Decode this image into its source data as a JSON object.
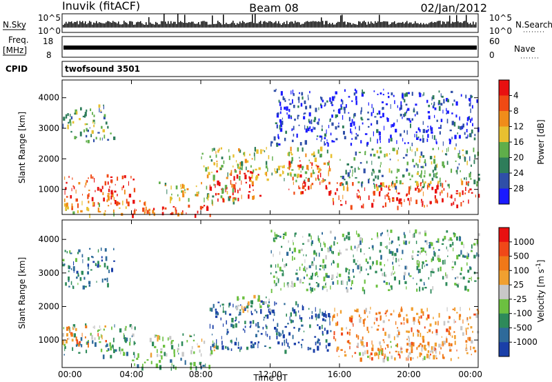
{
  "header": {
    "station": "Inuvik (fitACF)",
    "beam": "Beam 08",
    "date": "02/Jan/2012"
  },
  "status_panels": {
    "nsky_label": "N.Sky",
    "nsearch_label": "N.Search",
    "freq_label_line1": "Freq.",
    "freq_label_line2": "[MHz]",
    "nave_label": "Nave",
    "cpid_label": "CPID",
    "cpid_value": "twofsound 3501",
    "noise_ticks_left": [
      "10^5",
      "10^0"
    ],
    "noise_ticks_right": [
      "10^5",
      "10^0"
    ],
    "freq_ticks": [
      "18",
      "8"
    ],
    "nave_ticks": [
      "60",
      "0"
    ]
  },
  "chart_data": [
    {
      "type": "heatmap",
      "name": "power",
      "ylabel": "Slant Range [km]",
      "xlabel": "",
      "x_ticks": [
        "00:00",
        "04:00",
        "08:00",
        "12:00",
        "16:00",
        "20:00",
        "00:00"
      ],
      "y_ticks": [
        "1000",
        "2000",
        "3000",
        "4000"
      ],
      "ylim": [
        180,
        4580
      ],
      "xlim_hours": [
        0,
        24
      ],
      "colorbar": {
        "label": "Power [dB]",
        "ticks": [
          "4",
          "8",
          "12",
          "16",
          "20",
          "24",
          "28"
        ],
        "colors": [
          "#1a1aff",
          "#2f4fa8",
          "#2e7d5a",
          "#5fae4a",
          "#e8c030",
          "#f08c1a",
          "#f04a14",
          "#e81010"
        ]
      },
      "regions": [
        {
          "t0": 0.0,
          "t1": 4.2,
          "r0": 550,
          "r1": 1500,
          "level": 7
        },
        {
          "t0": 0.0,
          "t1": 5.5,
          "r0": 200,
          "r1": 650,
          "level": 5
        },
        {
          "t0": 4.0,
          "t1": 8.5,
          "r0": 200,
          "r1": 500,
          "level": 7
        },
        {
          "t0": 5.5,
          "t1": 10.0,
          "r0": 600,
          "r1": 1300,
          "level": 4
        },
        {
          "t0": 8.5,
          "t1": 11.5,
          "r0": 700,
          "r1": 1700,
          "level": 7
        },
        {
          "t0": 8.0,
          "t1": 15.5,
          "r0": 1300,
          "r1": 2400,
          "level": 4
        },
        {
          "t0": 13.0,
          "t1": 15.5,
          "r0": 900,
          "r1": 2000,
          "level": 7
        },
        {
          "t0": 15.5,
          "t1": 24.0,
          "r0": 450,
          "r1": 1300,
          "level": 7
        },
        {
          "t0": 16.0,
          "t1": 24.0,
          "r0": 1100,
          "r1": 2400,
          "level": 3
        },
        {
          "t0": 0.0,
          "t1": 3.0,
          "r0": 2600,
          "r1": 3800,
          "level": 3
        },
        {
          "t0": 12.0,
          "t1": 24.0,
          "r0": 2500,
          "r1": 4300,
          "level": 1
        }
      ]
    },
    {
      "type": "heatmap",
      "name": "velocity",
      "ylabel": "Slant Range [km]",
      "xlabel": "Time UT",
      "x_ticks": [
        "00:00",
        "04:00",
        "08:00",
        "12:00",
        "16:00",
        "20:00",
        "00:00"
      ],
      "y_ticks": [
        "1000",
        "2000",
        "3000",
        "4000"
      ],
      "ylim": [
        180,
        4580
      ],
      "xlim_hours": [
        0,
        24
      ],
      "colorbar": {
        "label": "Velocity [m s^-1]",
        "ticks": [
          "1000",
          "500",
          "100",
          "25",
          "-25",
          "-100",
          "-500",
          "-1000"
        ],
        "colors": [
          "#1a3fa8",
          "#2e6a9a",
          "#2e8a5a",
          "#6cc040",
          "#c8c8c8",
          "#f0a030",
          "#f07818",
          "#f04818",
          "#e81010"
        ]
      },
      "regions": [
        {
          "t0": 0.0,
          "t1": 4.2,
          "r0": 550,
          "r1": 1500,
          "level": 3
        },
        {
          "t0": 0.0,
          "t1": 2.5,
          "r0": 900,
          "r1": 1500,
          "level": 6
        },
        {
          "t0": 4.0,
          "t1": 8.5,
          "r0": 200,
          "r1": 650,
          "level": 3
        },
        {
          "t0": 5.0,
          "t1": 9.0,
          "r0": 600,
          "r1": 1200,
          "level": 4
        },
        {
          "t0": 8.5,
          "t1": 15.5,
          "r0": 700,
          "r1": 2200,
          "level": 1
        },
        {
          "t0": 10.0,
          "t1": 12.0,
          "r0": 1900,
          "r1": 2400,
          "level": 4
        },
        {
          "t0": 15.5,
          "t1": 24.0,
          "r0": 450,
          "r1": 2000,
          "level": 6
        },
        {
          "t0": 17.0,
          "t1": 22.0,
          "r0": 500,
          "r1": 1000,
          "level": 5
        },
        {
          "t0": 0.0,
          "t1": 3.0,
          "r0": 2600,
          "r1": 3800,
          "level": 2
        },
        {
          "t0": 12.0,
          "t1": 24.0,
          "r0": 2500,
          "r1": 4300,
          "level": 3
        }
      ]
    }
  ]
}
